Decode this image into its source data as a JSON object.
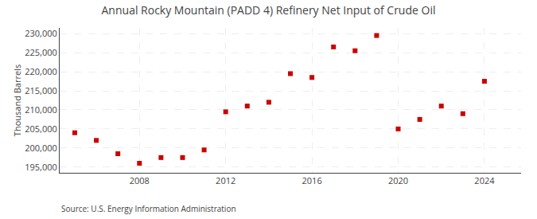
{
  "chart_data": {
    "type": "scatter",
    "title": "Annual Rocky Mountain (PADD 4) Refinery Net Input of Crude Oil",
    "ylabel": "Thousand Barrels",
    "annotations": [
      "Source: U.S. Energy Information Administration"
    ],
    "x": [
      2005,
      2006,
      2007,
      2008,
      2009,
      2010,
      2011,
      2012,
      2013,
      2014,
      2015,
      2016,
      2017,
      2018,
      2019,
      2020,
      2021,
      2022,
      2023,
      2024
    ],
    "values": [
      204000,
      202000,
      198500,
      196000,
      197500,
      197500,
      199500,
      209500,
      211000,
      212000,
      219500,
      218500,
      226500,
      225500,
      229500,
      205000,
      207500,
      211000,
      209000,
      217500
    ],
    "color": "#cc0000",
    "marker": "square",
    "xlim": [
      2004.3,
      2025.7
    ],
    "ylim": [
      193500,
      231500
    ],
    "xticks": [
      2008,
      2012,
      2016,
      2020,
      2024
    ],
    "yticks": [
      {
        "value": 195000,
        "label": "195,000"
      },
      {
        "value": 200000,
        "label": "200,000"
      },
      {
        "value": 205000,
        "label": "205,000"
      },
      {
        "value": 210000,
        "label": "210,000"
      },
      {
        "value": 215000,
        "label": "215,000"
      },
      {
        "value": 220000,
        "label": "220,000"
      },
      {
        "value": 225000,
        "label": "225,000"
      },
      {
        "value": 230000,
        "label": "230,000"
      }
    ],
    "grid": true
  }
}
